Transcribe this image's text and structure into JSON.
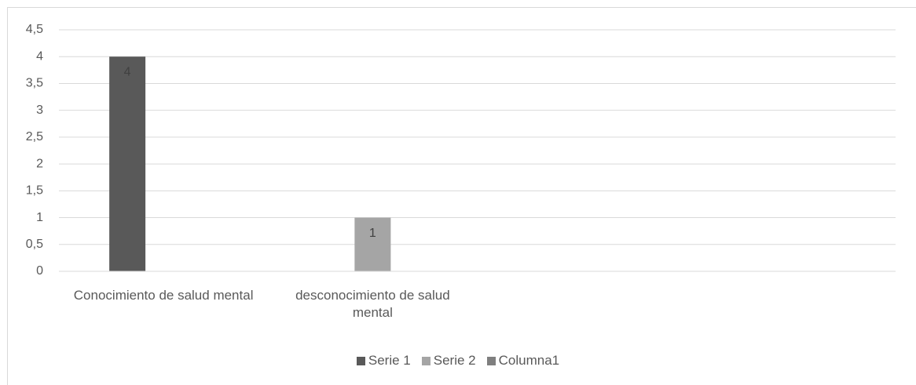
{
  "chart_data": {
    "type": "bar",
    "categories": [
      "Conocimiento de salud mental",
      "desconocimiento de salud mental",
      null,
      null
    ],
    "series": [
      {
        "name": "Serie 1",
        "color": "#595959",
        "values": [
          4,
          null,
          null,
          null
        ]
      },
      {
        "name": "Serie 2",
        "color": "#a5a5a5",
        "values": [
          null,
          1,
          null,
          null
        ]
      },
      {
        "name": "Columna1",
        "color": "#7f7f7f",
        "values": [
          null,
          null,
          null,
          null
        ]
      }
    ],
    "ylim": [
      0,
      4.5
    ],
    "yticks": [
      0,
      {
        "value": 0.5,
        "label": "0,5"
      },
      1,
      {
        "value": 1.5,
        "label": "1,5"
      },
      2,
      {
        "value": 2.5,
        "label": "2,5"
      },
      3,
      {
        "value": 3.5,
        "label": "3,5"
      },
      4,
      {
        "value": 4.5,
        "label": "4,5"
      }
    ],
    "grid": true,
    "legend": "bottom"
  }
}
